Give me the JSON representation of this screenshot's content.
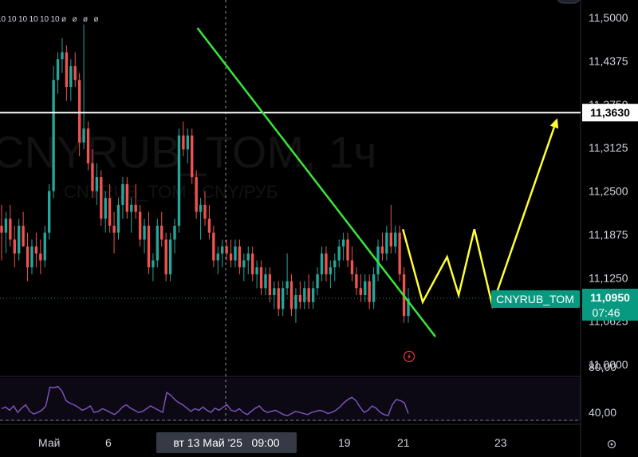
{
  "watermark": {
    "title": "CNYRUB_TOM, 1ч",
    "subtitle": "CNYRUB_TOM · CNY/РУБ"
  },
  "top_marks": [
    "10",
    "10",
    "10",
    "10",
    "10",
    "10",
    "ø",
    "ø",
    "ø",
    "ø"
  ],
  "price_axis": {
    "ticks": [
      "11,5000",
      "11,4375",
      "11,3750",
      "11,3125",
      "11,2500",
      "11,1875",
      "11,1250",
      "11,0625",
      "11,0000"
    ],
    "hline_label": "11,3630",
    "symbol_tag": "CNYRUB_TOM",
    "last_price": "11,0950",
    "countdown": "07:46"
  },
  "rsi_axis": {
    "ticks": [
      "80,00",
      "40,00"
    ]
  },
  "time_axis": {
    "ticks": [
      "Май",
      "6",
      "19",
      "21",
      "23"
    ],
    "crosshair_label": "вт 13 Май '25   09:00"
  },
  "icons": {
    "alert": "lightning-alert-icon",
    "settings": "gear-icon"
  },
  "colors": {
    "background": "#000000",
    "up": "#26a69a",
    "down": "#ef5350",
    "trendline": "#39e639",
    "pattern": "#ffff33",
    "rsi": "#7e57c2",
    "tag": "#089981",
    "hline": "#ffffff"
  },
  "chart_data": {
    "type": "candlestick",
    "symbol": "CNYRUB_TOM",
    "timeframe": "1ч",
    "ylim": [
      11.0,
      11.5
    ],
    "horizontal_level": 11.363,
    "last_price": 11.095,
    "rsi": {
      "ylim": [
        20,
        100
      ],
      "levels": [
        80,
        40
      ],
      "values": [
        55,
        58,
        52,
        60,
        48,
        56,
        62,
        50,
        45,
        48,
        52,
        60,
        95,
        94,
        96,
        88,
        70,
        65,
        62,
        58,
        52,
        55,
        60,
        48,
        50,
        55,
        52,
        48,
        44,
        50,
        58,
        62,
        56,
        52,
        48,
        50,
        55,
        60,
        56,
        52,
        48,
        85,
        80,
        72,
        66,
        62,
        56,
        50,
        55,
        52,
        58,
        52,
        48,
        56,
        52,
        58,
        62,
        52,
        50,
        55,
        48,
        44,
        50,
        56,
        60,
        52,
        48,
        50,
        52,
        48,
        44,
        42,
        46,
        50,
        48,
        46,
        44,
        48,
        50,
        52,
        50,
        46,
        48,
        52,
        58,
        66,
        72,
        76,
        70,
        58,
        48,
        52,
        60,
        56,
        48,
        44,
        42,
        62,
        72,
        70,
        66,
        46
      ]
    },
    "trendline": [
      [
        0.34,
        11.485
      ],
      [
        0.75,
        11.04
      ]
    ],
    "projection": [
      [
        0.694,
        11.195
      ],
      [
        0.728,
        11.09
      ],
      [
        0.77,
        11.155
      ],
      [
        0.79,
        11.1
      ],
      [
        0.817,
        11.195
      ],
      [
        0.848,
        11.085
      ],
      [
        0.96,
        11.355
      ]
    ],
    "candles": [
      {
        "o": 11.2,
        "h": 11.23,
        "l": 11.15,
        "c": 11.19
      },
      {
        "o": 11.19,
        "h": 11.22,
        "l": 11.16,
        "c": 11.21
      },
      {
        "o": 11.21,
        "h": 11.23,
        "l": 11.17,
        "c": 11.18
      },
      {
        "o": 11.18,
        "h": 11.2,
        "l": 11.14,
        "c": 11.16
      },
      {
        "o": 11.16,
        "h": 11.21,
        "l": 11.15,
        "c": 11.2
      },
      {
        "o": 11.2,
        "h": 11.22,
        "l": 11.17,
        "c": 11.17
      },
      {
        "o": 11.17,
        "h": 11.19,
        "l": 11.12,
        "c": 11.14
      },
      {
        "o": 11.14,
        "h": 11.18,
        "l": 11.13,
        "c": 11.17
      },
      {
        "o": 11.17,
        "h": 11.19,
        "l": 11.14,
        "c": 11.16
      },
      {
        "o": 11.16,
        "h": 11.18,
        "l": 11.13,
        "c": 11.15
      },
      {
        "o": 11.15,
        "h": 11.2,
        "l": 11.14,
        "c": 11.19
      },
      {
        "o": 11.19,
        "h": 11.26,
        "l": 11.18,
        "c": 11.25
      },
      {
        "o": 11.25,
        "h": 11.43,
        "l": 11.24,
        "c": 11.41
      },
      {
        "o": 11.41,
        "h": 11.45,
        "l": 11.39,
        "c": 11.44
      },
      {
        "o": 11.44,
        "h": 11.47,
        "l": 11.42,
        "c": 11.45
      },
      {
        "o": 11.45,
        "h": 11.46,
        "l": 11.38,
        "c": 11.4
      },
      {
        "o": 11.4,
        "h": 11.44,
        "l": 11.38,
        "c": 11.43
      },
      {
        "o": 11.43,
        "h": 11.45,
        "l": 11.4,
        "c": 11.41
      },
      {
        "o": 11.41,
        "h": 11.42,
        "l": 11.3,
        "c": 11.32
      },
      {
        "o": 11.32,
        "h": 11.49,
        "l": 11.31,
        "c": 11.34
      },
      {
        "o": 11.34,
        "h": 11.35,
        "l": 11.28,
        "c": 11.29
      },
      {
        "o": 11.29,
        "h": 11.31,
        "l": 11.24,
        "c": 11.25
      },
      {
        "o": 11.25,
        "h": 11.29,
        "l": 11.23,
        "c": 11.27
      },
      {
        "o": 11.27,
        "h": 11.28,
        "l": 11.2,
        "c": 11.21
      },
      {
        "o": 11.21,
        "h": 11.25,
        "l": 11.19,
        "c": 11.24
      },
      {
        "o": 11.24,
        "h": 11.26,
        "l": 11.19,
        "c": 11.2
      },
      {
        "o": 11.2,
        "h": 11.22,
        "l": 11.16,
        "c": 11.19
      },
      {
        "o": 11.19,
        "h": 11.24,
        "l": 11.18,
        "c": 11.23
      },
      {
        "o": 11.23,
        "h": 11.27,
        "l": 11.21,
        "c": 11.26
      },
      {
        "o": 11.26,
        "h": 11.27,
        "l": 11.21,
        "c": 11.22
      },
      {
        "o": 11.22,
        "h": 11.24,
        "l": 11.19,
        "c": 11.23
      },
      {
        "o": 11.23,
        "h": 11.26,
        "l": 11.21,
        "c": 11.22
      },
      {
        "o": 11.22,
        "h": 11.23,
        "l": 11.17,
        "c": 11.18
      },
      {
        "o": 11.18,
        "h": 11.21,
        "l": 11.16,
        "c": 11.2
      },
      {
        "o": 11.2,
        "h": 11.22,
        "l": 11.13,
        "c": 11.14
      },
      {
        "o": 11.14,
        "h": 11.16,
        "l": 11.12,
        "c": 11.15
      },
      {
        "o": 11.15,
        "h": 11.21,
        "l": 11.14,
        "c": 11.2
      },
      {
        "o": 11.2,
        "h": 11.22,
        "l": 11.17,
        "c": 11.18
      },
      {
        "o": 11.18,
        "h": 11.19,
        "l": 11.12,
        "c": 11.13
      },
      {
        "o": 11.13,
        "h": 11.19,
        "l": 11.12,
        "c": 11.18
      },
      {
        "o": 11.18,
        "h": 11.21,
        "l": 11.16,
        "c": 11.2
      },
      {
        "o": 11.2,
        "h": 11.34,
        "l": 11.19,
        "c": 11.33
      },
      {
        "o": 11.33,
        "h": 11.35,
        "l": 11.3,
        "c": 11.31
      },
      {
        "o": 11.31,
        "h": 11.34,
        "l": 11.29,
        "c": 11.33
      },
      {
        "o": 11.33,
        "h": 11.34,
        "l": 11.26,
        "c": 11.27
      },
      {
        "o": 11.27,
        "h": 11.28,
        "l": 11.21,
        "c": 11.22
      },
      {
        "o": 11.22,
        "h": 11.24,
        "l": 11.18,
        "c": 11.23
      },
      {
        "o": 11.23,
        "h": 11.25,
        "l": 11.2,
        "c": 11.21
      },
      {
        "o": 11.21,
        "h": 11.23,
        "l": 11.18,
        "c": 11.19
      },
      {
        "o": 11.19,
        "h": 11.2,
        "l": 11.14,
        "c": 11.15
      },
      {
        "o": 11.15,
        "h": 11.17,
        "l": 11.13,
        "c": 11.16
      },
      {
        "o": 11.16,
        "h": 11.18,
        "l": 11.14,
        "c": 11.17
      },
      {
        "o": 11.17,
        "h": 11.18,
        "l": 11.15,
        "c": 11.16
      },
      {
        "o": 11.16,
        "h": 11.18,
        "l": 11.14,
        "c": 11.15
      },
      {
        "o": 11.15,
        "h": 11.18,
        "l": 11.14,
        "c": 11.17
      },
      {
        "o": 11.17,
        "h": 11.18,
        "l": 11.13,
        "c": 11.14
      },
      {
        "o": 11.14,
        "h": 11.16,
        "l": 11.12,
        "c": 11.15
      },
      {
        "o": 11.15,
        "h": 11.17,
        "l": 11.13,
        "c": 11.16
      },
      {
        "o": 11.16,
        "h": 11.17,
        "l": 11.12,
        "c": 11.13
      },
      {
        "o": 11.13,
        "h": 11.15,
        "l": 11.11,
        "c": 11.14
      },
      {
        "o": 11.14,
        "h": 11.15,
        "l": 11.1,
        "c": 11.11
      },
      {
        "o": 11.11,
        "h": 11.14,
        "l": 11.1,
        "c": 11.13
      },
      {
        "o": 11.13,
        "h": 11.14,
        "l": 11.09,
        "c": 11.1
      },
      {
        "o": 11.1,
        "h": 11.12,
        "l": 11.08,
        "c": 11.11
      },
      {
        "o": 11.11,
        "h": 11.12,
        "l": 11.07,
        "c": 11.08
      },
      {
        "o": 11.08,
        "h": 11.12,
        "l": 11.07,
        "c": 11.11
      },
      {
        "o": 11.11,
        "h": 11.16,
        "l": 11.1,
        "c": 11.12
      },
      {
        "o": 11.12,
        "h": 11.13,
        "l": 11.07,
        "c": 11.08
      },
      {
        "o": 11.08,
        "h": 11.11,
        "l": 11.06,
        "c": 11.1
      },
      {
        "o": 11.1,
        "h": 11.12,
        "l": 11.08,
        "c": 11.09
      },
      {
        "o": 11.09,
        "h": 11.12,
        "l": 11.08,
        "c": 11.11
      },
      {
        "o": 11.11,
        "h": 11.13,
        "l": 11.08,
        "c": 11.09
      },
      {
        "o": 11.09,
        "h": 11.12,
        "l": 11.08,
        "c": 11.11
      },
      {
        "o": 11.11,
        "h": 11.14,
        "l": 11.1,
        "c": 11.13
      },
      {
        "o": 11.13,
        "h": 11.17,
        "l": 11.12,
        "c": 11.16
      },
      {
        "o": 11.16,
        "h": 11.17,
        "l": 11.12,
        "c": 11.13
      },
      {
        "o": 11.13,
        "h": 11.15,
        "l": 11.11,
        "c": 11.14
      },
      {
        "o": 11.14,
        "h": 11.16,
        "l": 11.12,
        "c": 11.15
      },
      {
        "o": 11.15,
        "h": 11.18,
        "l": 11.14,
        "c": 11.17
      },
      {
        "o": 11.17,
        "h": 11.19,
        "l": 11.15,
        "c": 11.18
      },
      {
        "o": 11.18,
        "h": 11.19,
        "l": 11.14,
        "c": 11.15
      },
      {
        "o": 11.15,
        "h": 11.17,
        "l": 11.12,
        "c": 11.13
      },
      {
        "o": 11.13,
        "h": 11.14,
        "l": 11.1,
        "c": 11.11
      },
      {
        "o": 11.11,
        "h": 11.13,
        "l": 11.09,
        "c": 11.1
      },
      {
        "o": 11.1,
        "h": 11.13,
        "l": 11.09,
        "c": 11.12
      },
      {
        "o": 11.12,
        "h": 11.13,
        "l": 11.08,
        "c": 11.09
      },
      {
        "o": 11.09,
        "h": 11.14,
        "l": 11.08,
        "c": 11.13
      },
      {
        "o": 11.13,
        "h": 11.18,
        "l": 11.12,
        "c": 11.17
      },
      {
        "o": 11.17,
        "h": 11.19,
        "l": 11.15,
        "c": 11.16
      },
      {
        "o": 11.16,
        "h": 11.2,
        "l": 11.15,
        "c": 11.19
      },
      {
        "o": 11.19,
        "h": 11.23,
        "l": 11.16,
        "c": 11.17
      },
      {
        "o": 11.17,
        "h": 11.2,
        "l": 11.16,
        "c": 11.19
      },
      {
        "o": 11.19,
        "h": 11.2,
        "l": 11.12,
        "c": 11.13
      },
      {
        "o": 11.13,
        "h": 11.14,
        "l": 11.06,
        "c": 11.07
      },
      {
        "o": 11.07,
        "h": 11.11,
        "l": 11.06,
        "c": 11.095
      }
    ]
  }
}
